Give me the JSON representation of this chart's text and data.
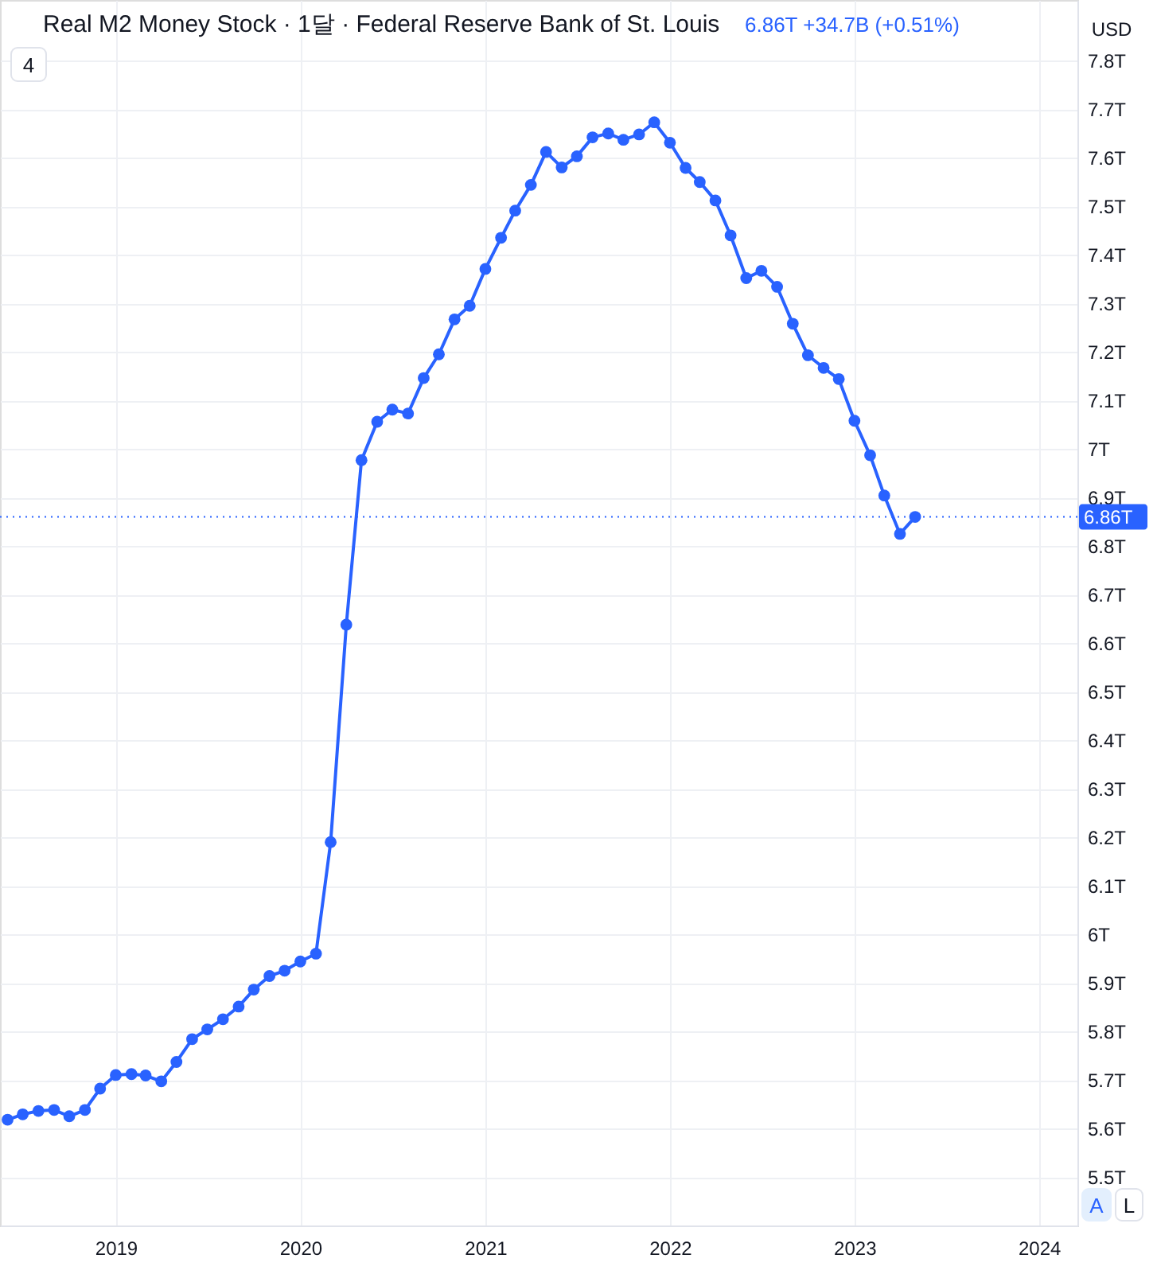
{
  "chart_data": {
    "type": "line",
    "title": "Real M2 Money Stock · 1달 · Federal Reserve Bank of St. Louis",
    "subtitle": "6.86T +34.7B (+0.51%)",
    "ylabel": "USD",
    "annotations": [
      "4",
      "A",
      "L"
    ],
    "x": [
      "2018-06",
      "2018-07",
      "2018-08",
      "2018-09",
      "2018-10",
      "2018-11",
      "2018-12",
      "2019-01",
      "2019-02",
      "2019-03",
      "2019-04",
      "2019-05",
      "2019-06",
      "2019-07",
      "2019-08",
      "2019-09",
      "2019-10",
      "2019-11",
      "2019-12",
      "2020-01",
      "2020-02",
      "2020-03",
      "2020-04",
      "2020-05",
      "2020-06",
      "2020-07",
      "2020-08",
      "2020-09",
      "2020-10",
      "2020-11",
      "2020-12",
      "2021-01",
      "2021-02",
      "2021-03",
      "2021-04",
      "2021-05",
      "2021-06",
      "2021-07",
      "2021-08",
      "2021-09",
      "2021-10",
      "2021-11",
      "2021-12",
      "2022-01",
      "2022-02",
      "2022-03",
      "2022-04",
      "2022-05",
      "2022-06",
      "2022-07",
      "2022-08",
      "2022-09",
      "2022-10",
      "2022-11",
      "2022-12",
      "2023-01",
      "2023-02",
      "2023-03",
      "2023-04",
      "2023-05"
    ],
    "series": [
      {
        "color": "#2962ff",
        "values": [
          5.618,
          5.629,
          5.636,
          5.638,
          5.625,
          5.638,
          5.682,
          5.71,
          5.712,
          5.709,
          5.697,
          5.737,
          5.784,
          5.804,
          5.825,
          5.851,
          5.886,
          5.914,
          5.925,
          5.944,
          5.96,
          6.19,
          6.638,
          6.977,
          7.056,
          7.081,
          7.073,
          7.146,
          7.195,
          7.267,
          7.295,
          7.371,
          7.435,
          7.491,
          7.544,
          7.612,
          7.58,
          7.603,
          7.642,
          7.65,
          7.637,
          7.648,
          7.673,
          7.631,
          7.579,
          7.55,
          7.512,
          7.44,
          7.352,
          7.367,
          7.334,
          7.258,
          7.193,
          7.167,
          7.144,
          7.058,
          6.987,
          6.904,
          6.825,
          6.86
        ]
      }
    ],
    "xlim": [
      "2018-05-17",
      "2024-03-17"
    ],
    "xticks": [
      "2019",
      "2020",
      "2021",
      "2022",
      "2023",
      "2024"
    ],
    "ylim": [
      5.4,
      7.925
    ],
    "yticks": [
      {
        "value": 5.5,
        "label": "5.5T"
      },
      {
        "value": 5.6,
        "label": "5.6T"
      },
      {
        "value": 5.7,
        "label": "5.7T"
      },
      {
        "value": 5.8,
        "label": "5.8T"
      },
      {
        "value": 5.9,
        "label": "5.9T"
      },
      {
        "value": 6,
        "label": "6T"
      },
      {
        "value": 6.1,
        "label": "6.1T"
      },
      {
        "value": 6.2,
        "label": "6.2T"
      },
      {
        "value": 6.3,
        "label": "6.3T"
      },
      {
        "value": 6.4,
        "label": "6.4T"
      },
      {
        "value": 6.5,
        "label": "6.5T"
      },
      {
        "value": 6.6,
        "label": "6.6T"
      },
      {
        "value": 6.7,
        "label": "6.7T"
      },
      {
        "value": 6.8,
        "label": "6.8T"
      },
      {
        "value": 6.9,
        "label": "6.9T"
      },
      {
        "value": 7,
        "label": "7T"
      },
      {
        "value": 7.1,
        "label": "7.1T"
      },
      {
        "value": 7.2,
        "label": "7.2T"
      },
      {
        "value": 7.3,
        "label": "7.3T"
      },
      {
        "value": 7.4,
        "label": "7.4T"
      },
      {
        "value": 7.5,
        "label": "7.5T"
      },
      {
        "value": 7.6,
        "label": "7.6T"
      },
      {
        "value": 7.7,
        "label": "7.7T"
      },
      {
        "value": 7.8,
        "label": "7.8T"
      }
    ],
    "ref_lines": [
      {
        "axis": "y",
        "value": 6.86,
        "label": "6.86T",
        "color": "#2962ff",
        "line_style": "dotted"
      }
    ],
    "grid": true,
    "marker": "circle",
    "line_style": "solid"
  }
}
